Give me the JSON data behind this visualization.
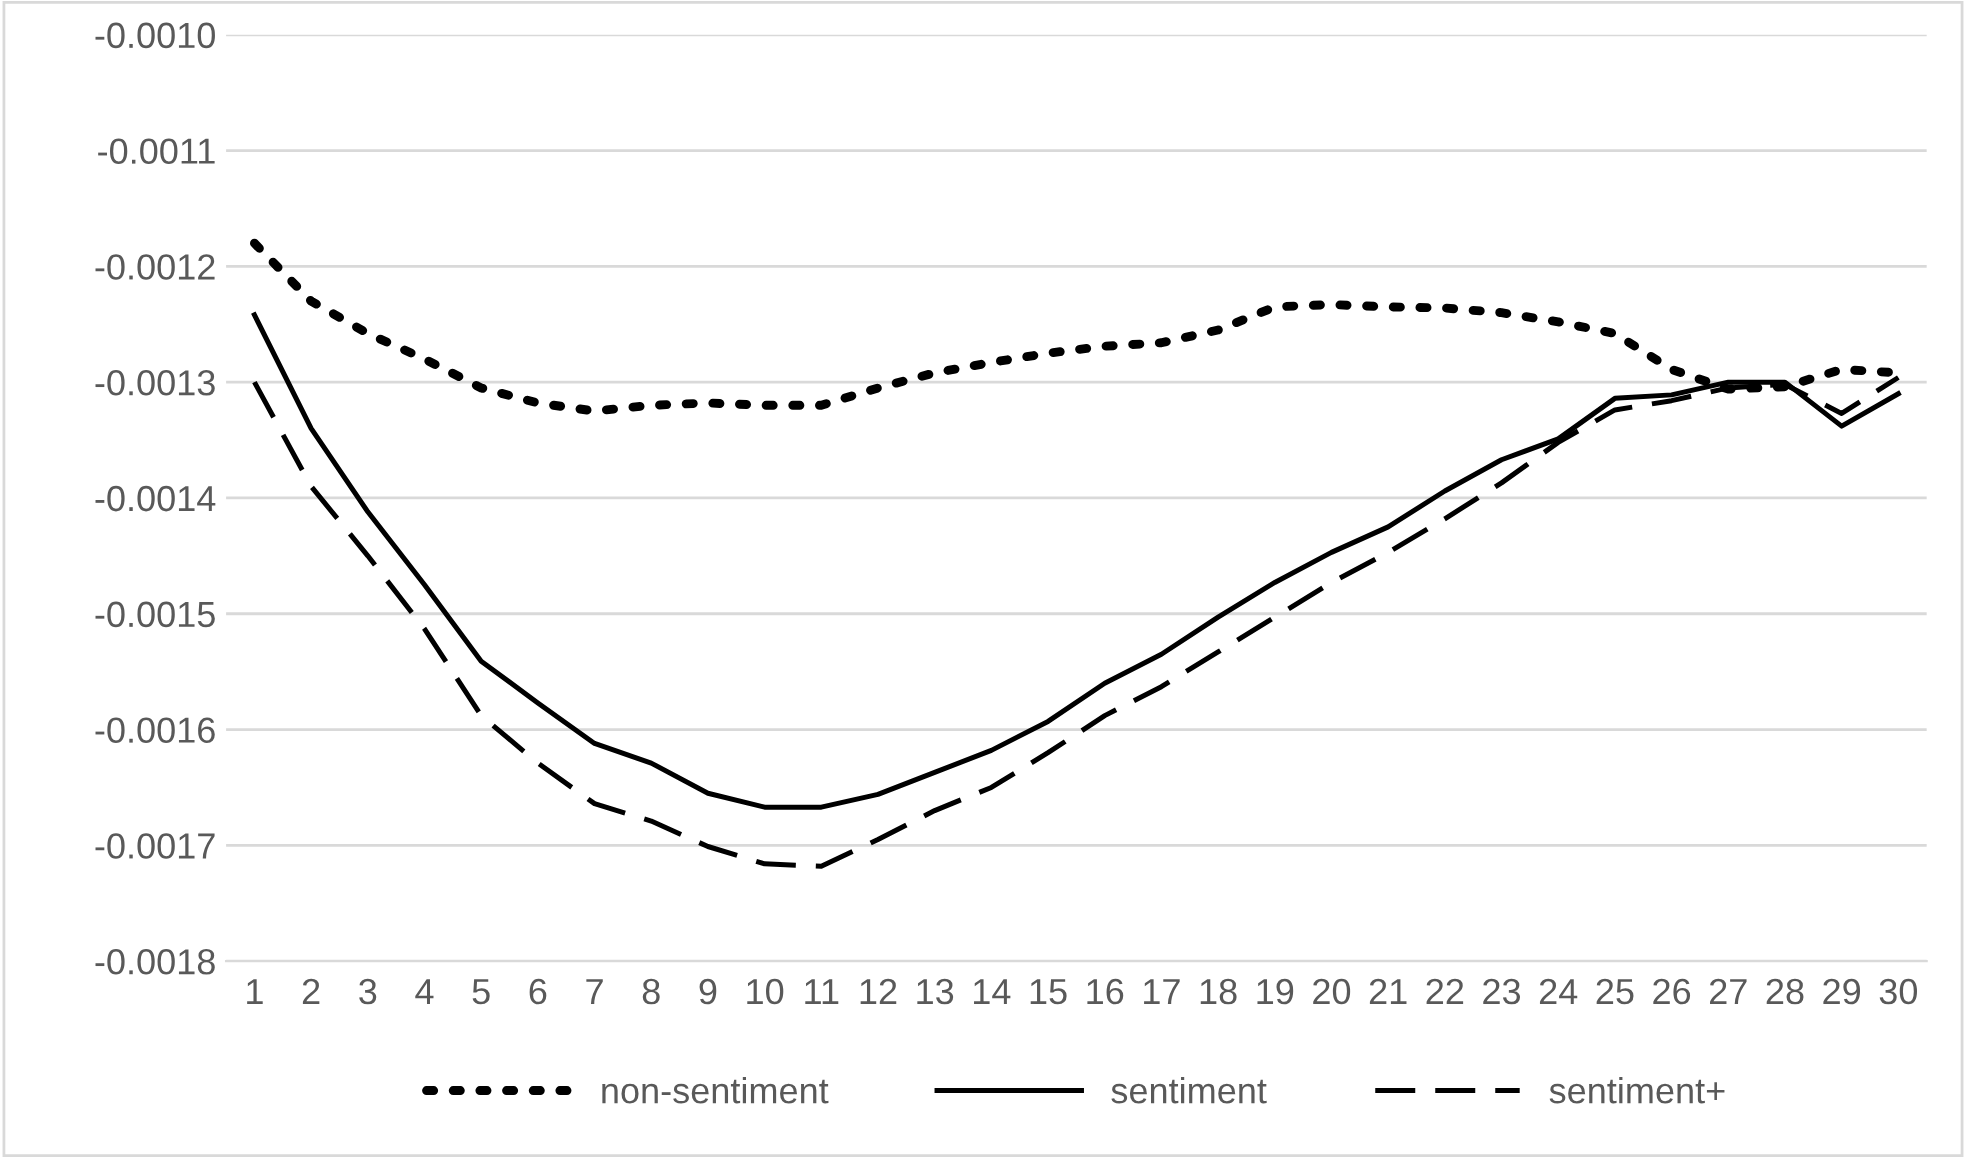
{
  "chart_data": {
    "type": "line",
    "categories": [
      "1",
      "2",
      "3",
      "4",
      "5",
      "6",
      "7",
      "8",
      "9",
      "10",
      "11",
      "12",
      "13",
      "14",
      "15",
      "16",
      "17",
      "18",
      "19",
      "20",
      "21",
      "22",
      "23",
      "24",
      "25",
      "26",
      "27",
      "28",
      "29",
      "30"
    ],
    "series": [
      {
        "name": "non-sentiment",
        "color": "#000000",
        "line_style": "dotted",
        "values": [
          -0.00118,
          -0.00123,
          -0.001258,
          -0.00128,
          -0.001305,
          -0.001318,
          -0.001325,
          -0.00132,
          -0.001318,
          -0.00132,
          -0.00132,
          -0.001305,
          -0.001292,
          -0.001283,
          -0.001275,
          -0.001269,
          -0.001266,
          -0.001255,
          -0.001235,
          -0.001233,
          -0.001235,
          -0.001236,
          -0.00124,
          -0.001248,
          -0.001258,
          -0.001289,
          -0.001306,
          -0.001304,
          -0.001289,
          -0.001292
        ]
      },
      {
        "name": "sentiment",
        "color": "#000000",
        "line_style": "solid",
        "values": [
          -0.001242,
          -0.00134,
          -0.001412,
          -0.001475,
          -0.001541,
          -0.001577,
          -0.001612,
          -0.001629,
          -0.001655,
          -0.001667,
          -0.001667,
          -0.001656,
          -0.001637,
          -0.001618,
          -0.001593,
          -0.00156,
          -0.001535,
          -0.001503,
          -0.001473,
          -0.001447,
          -0.001425,
          -0.001394,
          -0.001367,
          -0.001349,
          -0.001314,
          -0.001311,
          -0.0013,
          -0.0013,
          -0.001338,
          -0.00131
        ]
      },
      {
        "name": "sentiment+",
        "color": "#000000",
        "line_style": "dashed",
        "values": [
          -0.0013,
          -0.00139,
          -0.00145,
          -0.001513,
          -0.001588,
          -0.001629,
          -0.001664,
          -0.001679,
          -0.001701,
          -0.001716,
          -0.001718,
          -0.001695,
          -0.00167,
          -0.00165,
          -0.00162,
          -0.001588,
          -0.001563,
          -0.001533,
          -0.001503,
          -0.001473,
          -0.001447,
          -0.001418,
          -0.001387,
          -0.001352,
          -0.001324,
          -0.001316,
          -0.001305,
          -0.001302,
          -0.001327,
          -0.001296
        ]
      }
    ],
    "ylim": [
      -0.0018,
      -0.001
    ],
    "yticks": [
      {
        "value": -0.0018,
        "label": "-0.0018"
      },
      {
        "value": -0.0017,
        "label": "-0.0017"
      },
      {
        "value": -0.0016,
        "label": "-0.0016"
      },
      {
        "value": -0.0015,
        "label": "-0.0015"
      },
      {
        "value": -0.0014,
        "label": "-0.0014"
      },
      {
        "value": -0.0013,
        "label": "-0.0013"
      },
      {
        "value": -0.0012,
        "label": "-0.0012"
      },
      {
        "value": -0.0011,
        "label": "-0.0011"
      },
      {
        "value": -0.001,
        "label": "-0.0010"
      }
    ],
    "grid": "y",
    "legend": "bottom",
    "marker": "none"
  }
}
